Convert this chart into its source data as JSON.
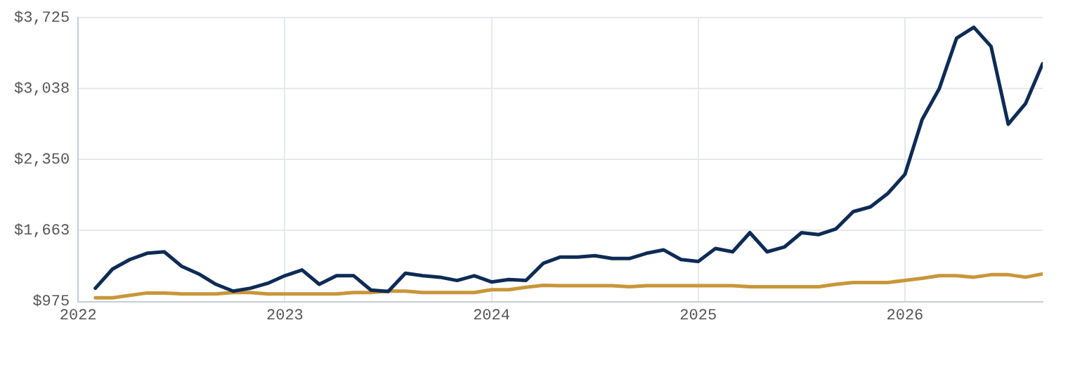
{
  "chart_data": {
    "type": "line",
    "x": [
      "2022-02",
      "2022-03",
      "2022-04",
      "2022-05",
      "2022-06",
      "2022-07",
      "2022-08",
      "2022-09",
      "2022-10",
      "2022-11",
      "2022-12",
      "2023-01",
      "2023-02",
      "2023-03",
      "2023-04",
      "2023-05",
      "2023-06",
      "2023-07",
      "2023-08",
      "2023-09",
      "2023-10",
      "2023-11",
      "2023-12",
      "2024-01",
      "2024-02",
      "2024-03",
      "2024-04",
      "2024-05",
      "2024-06",
      "2024-07",
      "2024-08",
      "2024-09",
      "2024-10",
      "2024-11",
      "2024-12",
      "2025-01",
      "2025-02",
      "2025-03",
      "2025-04",
      "2025-05",
      "2025-06",
      "2025-07",
      "2025-08",
      "2025-09",
      "2025-10",
      "2025-11",
      "2025-12",
      "2026-01",
      "2026-02",
      "2026-03",
      "2026-04",
      "2026-05",
      "2026-06",
      "2026-07",
      "2026-08",
      "2026-09"
    ],
    "series": [
      {
        "color": "#0d2b55",
        "values": [
          1104,
          1290,
          1382,
          1443,
          1457,
          1318,
          1243,
          1142,
          1076,
          1104,
          1151,
          1225,
          1281,
          1142,
          1225,
          1225,
          1086,
          1072,
          1249,
          1225,
          1211,
          1179,
          1225,
          1165,
          1188,
          1179,
          1345,
          1406,
          1406,
          1420,
          1392,
          1392,
          1443,
          1475,
          1382,
          1364,
          1489,
          1457,
          1642,
          1457,
          1503,
          1642,
          1624,
          1679,
          1846,
          1892,
          2021,
          2207,
          2739,
          3040,
          3527,
          3632,
          3447,
          2693,
          2892,
          3281
        ]
      },
      {
        "color": "#c8963a",
        "values": [
          1012,
          1012,
          1035,
          1058,
          1058,
          1049,
          1049,
          1049,
          1063,
          1063,
          1049,
          1049,
          1049,
          1049,
          1049,
          1063,
          1063,
          1076,
          1076,
          1063,
          1063,
          1063,
          1063,
          1090,
          1090,
          1114,
          1132,
          1128,
          1128,
          1128,
          1128,
          1118,
          1128,
          1128,
          1128,
          1128,
          1128,
          1128,
          1118,
          1118,
          1118,
          1118,
          1118,
          1142,
          1160,
          1160,
          1160,
          1179,
          1200,
          1225,
          1225,
          1211,
          1235,
          1235,
          1211,
          1243
        ]
      }
    ],
    "xlim": [
      "2022-01",
      "2026-09"
    ],
    "xticks": [
      {
        "value": "2022",
        "label": "2022"
      },
      {
        "value": "2023",
        "label": "2023"
      },
      {
        "value": "2024",
        "label": "2024"
      },
      {
        "value": "2025",
        "label": "2025"
      },
      {
        "value": "2026",
        "label": "2026"
      }
    ],
    "ylim": [
      975,
      3725
    ],
    "yticks": [
      {
        "value": 975,
        "label": "$975"
      },
      {
        "value": 1663,
        "label": "$1,663"
      },
      {
        "value": 2350,
        "label": "$2,350"
      },
      {
        "value": 3038,
        "label": "$3,038"
      },
      {
        "value": 3725,
        "label": "$3,725"
      }
    ],
    "grid": true,
    "marker": "none",
    "line_style": "solid"
  }
}
